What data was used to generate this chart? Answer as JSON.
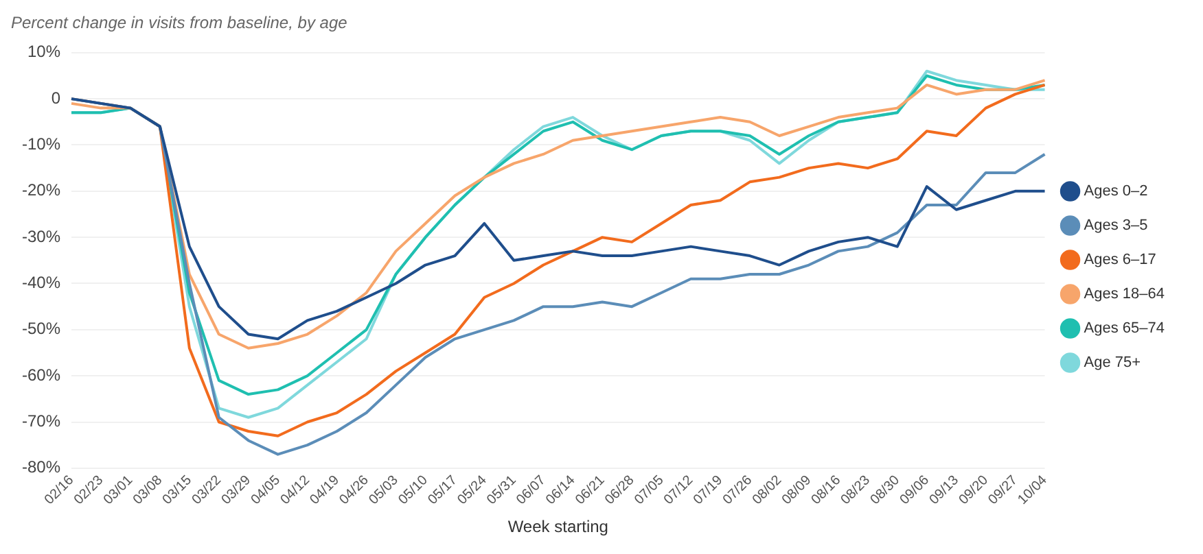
{
  "chart_data": {
    "type": "line",
    "title": "Percent change in visits from baseline, by age",
    "xlabel": "Week starting",
    "categories": [
      "02/16",
      "02/23",
      "03/01",
      "03/08",
      "03/15",
      "03/22",
      "03/29",
      "04/05",
      "04/12",
      "04/19",
      "04/26",
      "05/03",
      "05/10",
      "05/17",
      "05/24",
      "05/31",
      "06/07",
      "06/14",
      "06/21",
      "06/28",
      "07/05",
      "07/12",
      "07/19",
      "07/26",
      "08/02",
      "08/09",
      "08/16",
      "08/23",
      "08/30",
      "09/06",
      "09/13",
      "09/20",
      "09/27",
      "10/04"
    ],
    "series": [
      {
        "name": "Ages 0–2",
        "color": "#1f4e8c",
        "values": [
          0,
          -1,
          -2,
          -6,
          -32,
          -45,
          -51,
          -52,
          -48,
          -46,
          -43,
          -40,
          -36,
          -34,
          -27,
          -35,
          -34,
          -33,
          -34,
          -34,
          -33,
          -32,
          -33,
          -34,
          -36,
          -33,
          -31,
          -30,
          -32,
          -19,
          -24,
          -22,
          -20,
          -20
        ]
      },
      {
        "name": "Ages 3–5",
        "color": "#5b8db8",
        "values": [
          0,
          -1,
          -2,
          -6,
          -40,
          -69,
          -74,
          -77,
          -75,
          -72,
          -68,
          -62,
          -56,
          -52,
          -50,
          -48,
          -45,
          -45,
          -44,
          -45,
          -42,
          -39,
          -39,
          -38,
          -38,
          -36,
          -33,
          -32,
          -29,
          -23,
          -23,
          -16,
          -16,
          -12
        ]
      },
      {
        "name": "Ages 6–17",
        "color": "#f26b1d",
        "values": [
          0,
          -1,
          -2,
          -6,
          -54,
          -70,
          -72,
          -73,
          -70,
          -68,
          -64,
          -59,
          -55,
          -51,
          -43,
          -40,
          -36,
          -33,
          -30,
          -31,
          -27,
          -23,
          -22,
          -18,
          -17,
          -15,
          -14,
          -15,
          -13,
          -7,
          -8,
          -2,
          1,
          3
        ]
      },
      {
        "name": "Ages 18–64",
        "color": "#f7a56b",
        "values": [
          -1,
          -2,
          -2,
          -6,
          -38,
          -51,
          -54,
          -53,
          -51,
          -47,
          -42,
          -33,
          -27,
          -21,
          -17,
          -14,
          -12,
          -9,
          -8,
          -7,
          -6,
          -5,
          -4,
          -5,
          -8,
          -6,
          -4,
          -3,
          -2,
          3,
          1,
          2,
          2,
          4
        ]
      },
      {
        "name": "Ages 65–74",
        "color": "#1fbfb0",
        "values": [
          -3,
          -3,
          -2,
          -6,
          -42,
          -61,
          -64,
          -63,
          -60,
          -55,
          -50,
          -38,
          -30,
          -23,
          -17,
          -12,
          -7,
          -5,
          -9,
          -11,
          -8,
          -7,
          -7,
          -8,
          -12,
          -8,
          -5,
          -4,
          -3,
          5,
          3,
          2,
          2,
          3
        ]
      },
      {
        "name": "Age 75+",
        "color": "#7fd8dc",
        "values": [
          -3,
          -3,
          -2,
          -6,
          -45,
          -67,
          -69,
          -67,
          -62,
          -57,
          -52,
          -38,
          -30,
          -23,
          -17,
          -11,
          -6,
          -4,
          -8,
          -11,
          -8,
          -7,
          -7,
          -9,
          -14,
          -9,
          -5,
          -4,
          -3,
          6,
          4,
          3,
          2,
          2
        ]
      }
    ],
    "ylim": [
      -80,
      10
    ],
    "yticks": [
      {
        "value": 10,
        "label": "10%"
      },
      {
        "value": 0,
        "label": "0"
      },
      {
        "value": -10,
        "label": "-10%"
      },
      {
        "value": -20,
        "label": "-20%"
      },
      {
        "value": -30,
        "label": "-30%"
      },
      {
        "value": -40,
        "label": "-40%"
      },
      {
        "value": -50,
        "label": "-50%"
      },
      {
        "value": -60,
        "label": "-60%"
      },
      {
        "value": -70,
        "label": "-70%"
      },
      {
        "value": -80,
        "label": "-80%"
      }
    ],
    "grid": "y",
    "legend": "right",
    "marker": "none",
    "line_style": "solid"
  }
}
